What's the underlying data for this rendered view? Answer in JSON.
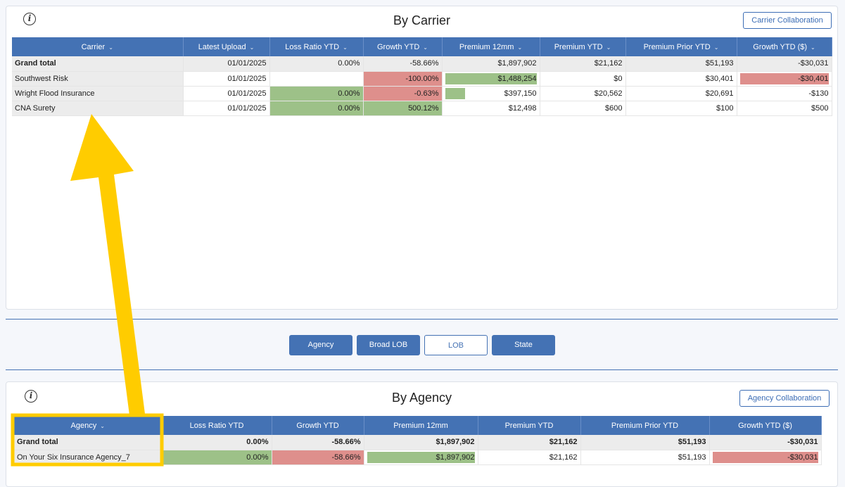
{
  "carrier_panel": {
    "title": "By Carrier",
    "collab_button": "Carrier Collaboration",
    "columns": [
      "Carrier",
      "Latest Upload",
      "Loss Ratio YTD",
      "Growth YTD",
      "Premium 12mm",
      "Premium YTD",
      "Premium Prior YTD",
      "Growth YTD ($)"
    ],
    "rows": [
      {
        "name": "Grand total",
        "upload": "01/01/2025",
        "loss": "0.00%",
        "growth": "-58.66%",
        "p12": "$1,897,902",
        "pytd": "$21,162",
        "pprior": "$51,193",
        "gd": "-$30,031",
        "total": true
      },
      {
        "name": "Southwest Risk",
        "upload": "01/01/2025",
        "loss": "",
        "growth": "-100.00%",
        "p12": "$1,488,254",
        "pytd": "$0",
        "pprior": "$30,401",
        "gd": "-$30,401",
        "loss_color": "",
        "growth_color": "red",
        "p12_val": 1488254,
        "gd_val": -30401
      },
      {
        "name": "Wright Flood Insurance",
        "upload": "01/01/2025",
        "loss": "0.00%",
        "growth": "-0.63%",
        "p12": "$397,150",
        "pytd": "$20,562",
        "pprior": "$20,691",
        "gd": "-$130",
        "loss_color": "green",
        "growth_color": "red",
        "p12_val": 397150,
        "gd_val": -130
      },
      {
        "name": "CNA Surety",
        "upload": "01/01/2025",
        "loss": "0.00%",
        "growth": "500.12%",
        "p12": "$12,498",
        "pytd": "$600",
        "pprior": "$100",
        "gd": "$500",
        "loss_color": "green",
        "growth_color": "green",
        "p12_val": 12498,
        "gd_val": 500
      }
    ]
  },
  "tabs": [
    "Agency",
    "Broad LOB",
    "LOB",
    "State"
  ],
  "agency_panel": {
    "title": "By Agency",
    "collab_button": "Agency Collaboration",
    "columns": [
      "Agency",
      "Loss Ratio YTD",
      "Growth YTD",
      "Premium 12mm",
      "Premium YTD",
      "Premium Prior YTD",
      "Growth YTD ($)"
    ],
    "rows": [
      {
        "name": "Grand total",
        "loss": "0.00%",
        "growth": "-58.66%",
        "p12": "$1,897,902",
        "pytd": "$21,162",
        "pprior": "$51,193",
        "gd": "-$30,031",
        "total": true
      },
      {
        "name": "On Your Six Insurance Agency_7",
        "loss": "0.00%",
        "growth": "-58.66%",
        "p12": "$1,897,902",
        "pytd": "$21,162",
        "pprior": "$51,193",
        "gd": "-$30,031",
        "loss_color": "green",
        "growth_color": "red",
        "p12_val": 1897902,
        "gd_val": -30031
      }
    ]
  },
  "colors": {
    "header": "#4472b4",
    "green": "#9dc188",
    "red": "#de8f8c",
    "annotation": "#ffcc00"
  }
}
